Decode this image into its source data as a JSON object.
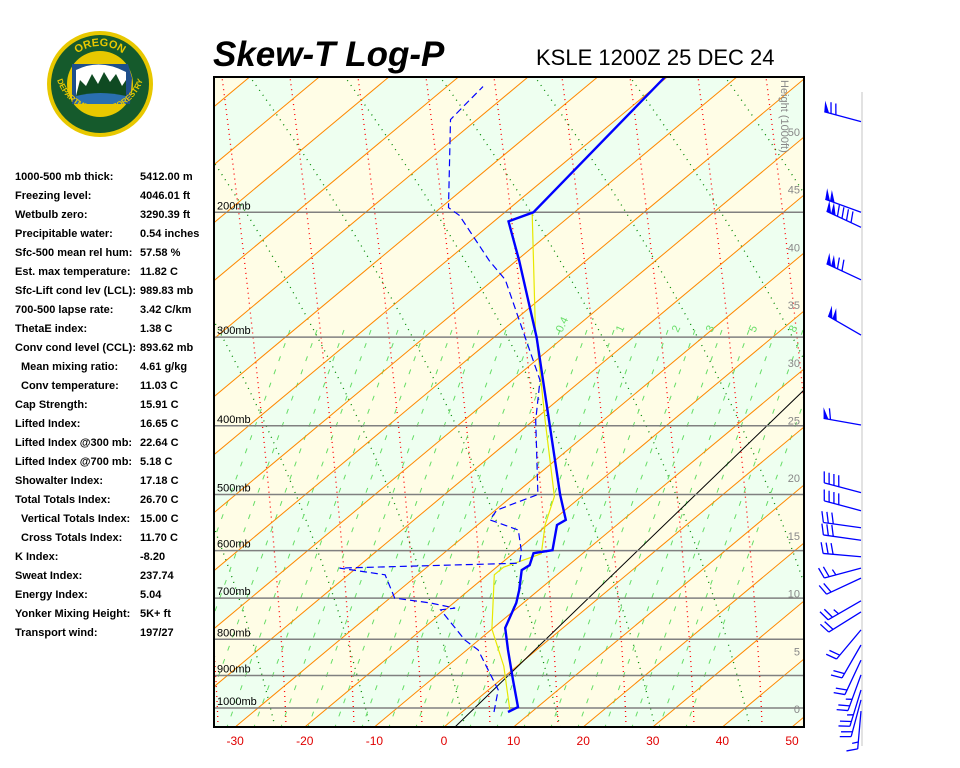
{
  "logo": {
    "text_top": "OREGON",
    "text_bottom": "DEPARTMENT OF FORESTRY"
  },
  "header": {
    "title": "Skew-T Log-P",
    "station": "KSLE 1200Z 25 DEC 24"
  },
  "indices": [
    {
      "label": "1000-500 mb thick:",
      "value": "5412.00 m",
      "indent": false
    },
    {
      "label": "Freezing level:",
      "value": "4046.01 ft",
      "indent": false
    },
    {
      "label": "Wetbulb zero:",
      "value": "3290.39 ft",
      "indent": false
    },
    {
      "label": "Precipitable water:",
      "value": "0.54 inches",
      "indent": false
    },
    {
      "label": "Sfc-500 mean rel hum:",
      "value": "57.58 %",
      "indent": false
    },
    {
      "label": "Est. max temperature:",
      "value": "11.82 C",
      "indent": false
    },
    {
      "label": "Sfc-Lift cond lev (LCL):",
      "value": "989.83 mb",
      "indent": false
    },
    {
      "label": "700-500 lapse rate:",
      "value": "3.42 C/km",
      "indent": false
    },
    {
      "label": "ThetaE index:",
      "value": "1.38 C",
      "indent": false
    },
    {
      "label": "Conv cond level (CCL):",
      "value": "893.62 mb",
      "indent": false
    },
    {
      "label": "Mean mixing ratio:",
      "value": "4.61 g/kg",
      "indent": true
    },
    {
      "label": "Conv temperature:",
      "value": "11.03 C",
      "indent": true
    },
    {
      "label": "Cap Strength:",
      "value": "15.91 C",
      "indent": false
    },
    {
      "label": "Lifted Index:",
      "value": "16.65 C",
      "indent": false
    },
    {
      "label": "Lifted Index @300 mb:",
      "value": "22.64 C",
      "indent": false
    },
    {
      "label": "Lifted Index @700 mb:",
      "value": "5.18 C",
      "indent": false
    },
    {
      "label": "Showalter Index:",
      "value": "17.18 C",
      "indent": false
    },
    {
      "label": "Total Totals Index:",
      "value": "26.70 C",
      "indent": false
    },
    {
      "label": "Vertical Totals Index:",
      "value": "15.00 C",
      "indent": true
    },
    {
      "label": "Cross Totals Index:",
      "value": "11.70 C",
      "indent": true
    },
    {
      "label": "K Index:",
      "value": "-8.20",
      "indent": false
    },
    {
      "label": "Sweat Index:",
      "value": "237.74",
      "indent": false
    },
    {
      "label": "Energy Index:",
      "value": "5.04",
      "indent": false
    },
    {
      "label": "Yonker Mixing Height:",
      "value": "5K+ ft",
      "indent": false
    },
    {
      "label": "Transport wind:",
      "value": "197/27",
      "indent": false
    }
  ],
  "chart_data": {
    "type": "line",
    "title": "Skew-T Log-P",
    "x_axis": {
      "ticks": [
        "-30",
        "-20",
        "-10",
        "0",
        "10",
        "20",
        "30",
        "40",
        "50"
      ],
      "range": [
        -30,
        50
      ],
      "unit": "C"
    },
    "y_axis": {
      "scale": "log",
      "ticks": [
        "200mb",
        "300mb",
        "400mb",
        "500mb",
        "600mb",
        "700mb",
        "800mb",
        "900mb",
        "1000mb"
      ],
      "pressure_levels": [
        200,
        300,
        400,
        500,
        600,
        700,
        800,
        900,
        1000
      ]
    },
    "height_axis": {
      "label": "Height (1000ft)",
      "ticks": [
        "0",
        "5",
        "10",
        "15",
        "20",
        "25",
        "30",
        "35",
        "40",
        "45",
        "50"
      ]
    },
    "mixing_ratio_labels": [
      "0.4",
      "1",
      "2",
      "3",
      "5",
      "8"
    ],
    "colors": {
      "temperature": "#0000ff",
      "dewpoint": "#0000ff",
      "parcel": "#e8e800",
      "isotherm": "#ff8800",
      "dry_adiabat": "#ff0000",
      "moist_adiabat": "#008800",
      "mixing_ratio": "#66dd66",
      "band_a": "#fffde6",
      "band_b": "#eefff0"
    },
    "series": [
      {
        "id": "temperature",
        "style": "solid",
        "points": [
          [
            1013,
            6.6
          ],
          [
            997,
            7.2
          ],
          [
            913,
            1.8
          ],
          [
            828,
            -4.1
          ],
          [
            771,
            -8.3
          ],
          [
            711,
            -11.0
          ],
          [
            682,
            -12.8
          ],
          [
            639,
            -15.9
          ],
          [
            629,
            -15.6
          ],
          [
            605,
            -17.1
          ],
          [
            599,
            -14.9
          ],
          [
            552,
            -18.6
          ],
          [
            543,
            -18.2
          ],
          [
            500,
            -23.4
          ],
          [
            300,
            -53.9
          ],
          [
            234,
            -69.6
          ],
          [
            206,
            -77.9
          ],
          [
            200,
            -75.9
          ],
          [
            183,
            -76.8
          ],
          [
            129,
            -80.3
          ]
        ]
      },
      {
        "id": "dewpoint",
        "style": "dashed",
        "points": [
          [
            1013,
            4.6
          ],
          [
            943,
            1.4
          ],
          [
            828,
            -8.4
          ],
          [
            802,
            -12.0
          ],
          [
            727,
            -20.7
          ],
          [
            723,
            -18.9
          ],
          [
            711,
            -23.4
          ],
          [
            700,
            -29.3
          ],
          [
            649,
            -34.7
          ],
          [
            635,
            -42.4
          ],
          [
            625,
            -17.4
          ],
          [
            603,
            -19.0
          ],
          [
            561,
            -23.3
          ],
          [
            543,
            -29.1
          ],
          [
            526,
            -29.8
          ],
          [
            500,
            -26.6
          ],
          [
            393,
            -39.7
          ],
          [
            345,
            -46.0
          ],
          [
            249,
            -68.3
          ],
          [
            234,
            -73.9
          ],
          [
            202,
            -86.0
          ],
          [
            197,
            -88.9
          ],
          [
            148,
            -103.8
          ],
          [
            139,
            -104.4
          ],
          [
            133,
            -104.8
          ]
        ]
      },
      {
        "id": "parcel",
        "style": "solid",
        "points": [
          [
            1013,
            6.9
          ],
          [
            873,
            -1.9
          ],
          [
            774,
            -10.0
          ],
          [
            649,
            -19.0
          ],
          [
            633,
            -19.0
          ],
          [
            606,
            -15.9
          ],
          [
            552,
            -20.3
          ],
          [
            503,
            -23.9
          ],
          [
            394,
            -38.2
          ],
          [
            290,
            -55.9
          ],
          [
            201,
            -75.8
          ]
        ]
      }
    ],
    "wind_barbs": [
      {
        "p": 149,
        "dir": 285,
        "kt": 70
      },
      {
        "p": 200,
        "dir": 290,
        "kt": 100
      },
      {
        "p": 210,
        "dir": 295,
        "kt": 140
      },
      {
        "p": 249,
        "dir": 295,
        "kt": 120
      },
      {
        "p": 298,
        "dir": 300,
        "kt": 100
      },
      {
        "p": 399,
        "dir": 280,
        "kt": 60
      },
      {
        "p": 497,
        "dir": 285,
        "kt": 40
      },
      {
        "p": 527,
        "dir": 285,
        "kt": 40
      },
      {
        "p": 557,
        "dir": 278,
        "kt": 30
      },
      {
        "p": 580,
        "dir": 278,
        "kt": 30
      },
      {
        "p": 612,
        "dir": 275,
        "kt": 30
      },
      {
        "p": 635,
        "dir": 255,
        "kt": 25
      },
      {
        "p": 656,
        "dir": 245,
        "kt": 20
      },
      {
        "p": 706,
        "dir": 240,
        "kt": 25
      },
      {
        "p": 732,
        "dir": 238,
        "kt": 20
      },
      {
        "p": 776,
        "dir": 220,
        "kt": 20
      },
      {
        "p": 815,
        "dir": 210,
        "kt": 20
      },
      {
        "p": 856,
        "dir": 205,
        "kt": 20
      },
      {
        "p": 898,
        "dir": 200,
        "kt": 25
      },
      {
        "p": 943,
        "dir": 197,
        "kt": 25
      },
      {
        "p": 974,
        "dir": 195,
        "kt": 20
      },
      {
        "p": 1010,
        "dir": 185,
        "kt": 15
      }
    ]
  }
}
